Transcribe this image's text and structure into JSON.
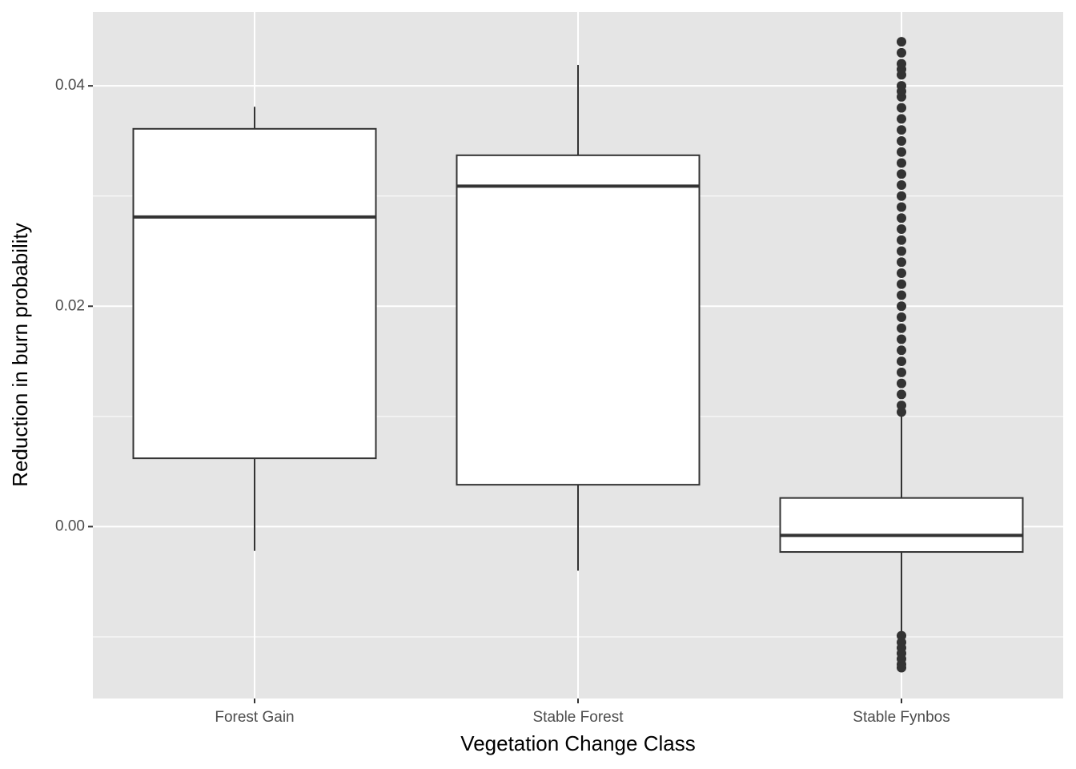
{
  "chart_data": {
    "type": "boxplot",
    "x_label": "Vegetation Change Class",
    "y_label": "Reduction in burn probability",
    "categories": [
      "Forest Gain",
      "Stable Forest",
      "Stable Fynbos"
    ],
    "boxes": [
      {
        "whisker_low": -0.0022,
        "q1": 0.0062,
        "median": 0.0281,
        "q3": 0.0361,
        "whisker_high": 0.0381,
        "outliers": []
      },
      {
        "whisker_low": -0.004,
        "q1": 0.0038,
        "median": 0.0309,
        "q3": 0.0337,
        "whisker_high": 0.0419,
        "outliers": []
      },
      {
        "whisker_low": -0.0097,
        "q1": -0.0023,
        "median": -0.0008,
        "q3": 0.0026,
        "whisker_high": 0.0103,
        "outliers": [
          0.0104,
          0.011,
          0.012,
          0.013,
          0.014,
          0.015,
          0.016,
          0.017,
          0.018,
          0.019,
          0.02,
          0.021,
          0.022,
          0.023,
          0.024,
          0.025,
          0.026,
          0.027,
          0.028,
          0.029,
          0.03,
          0.031,
          0.032,
          0.033,
          0.034,
          0.035,
          0.036,
          0.037,
          0.038,
          0.039,
          0.0395,
          0.04,
          0.041,
          0.0415,
          0.042,
          0.043,
          0.044,
          -0.0099,
          -0.0105,
          -0.011,
          -0.0115,
          -0.012,
          -0.0125,
          -0.0128
        ]
      }
    ],
    "ylim": [
      -0.0156,
      0.0467
    ],
    "yticks": [
      {
        "value": 0,
        "label": "0.00"
      },
      {
        "value": 0.02,
        "label": "0.02"
      },
      {
        "value": 0.04,
        "label": "0.04"
      }
    ],
    "minor_yticks": [
      -0.01,
      0.01,
      0.03
    ],
    "grid": true,
    "box_fill": "#ffffff",
    "line_color": "#333333",
    "panel_color": "#e5e5e5"
  }
}
